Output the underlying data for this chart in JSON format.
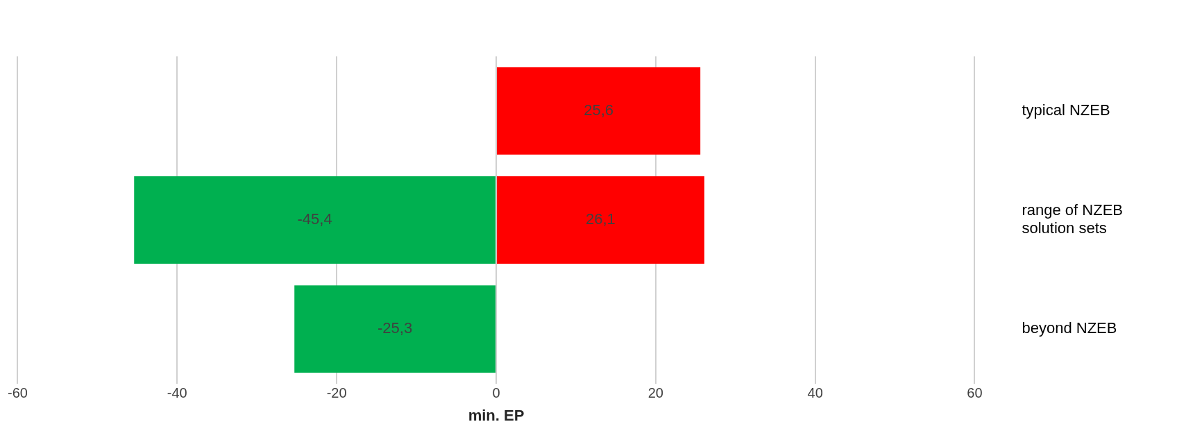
{
  "chart_data": {
    "type": "bar",
    "orientation": "horizontal",
    "stacked": true,
    "xlabel": "min. EP",
    "categories": [
      "typical NZEB",
      "range of NZEB solution sets",
      "beyond NZEB"
    ],
    "series": [
      {
        "color": "#ff0000",
        "values": [
          25.6,
          26.1,
          null
        ],
        "value_labels": [
          "25,6",
          "26,1",
          null
        ]
      },
      {
        "color": "#00b050",
        "values": [
          null,
          -45.4,
          -25.3
        ],
        "value_labels": [
          null,
          "-45,4",
          "-25,3"
        ]
      }
    ],
    "xlim": [
      -60,
      60
    ],
    "xticks": [
      -60,
      -40,
      -20,
      0,
      20,
      40,
      60
    ],
    "grid": "x"
  }
}
